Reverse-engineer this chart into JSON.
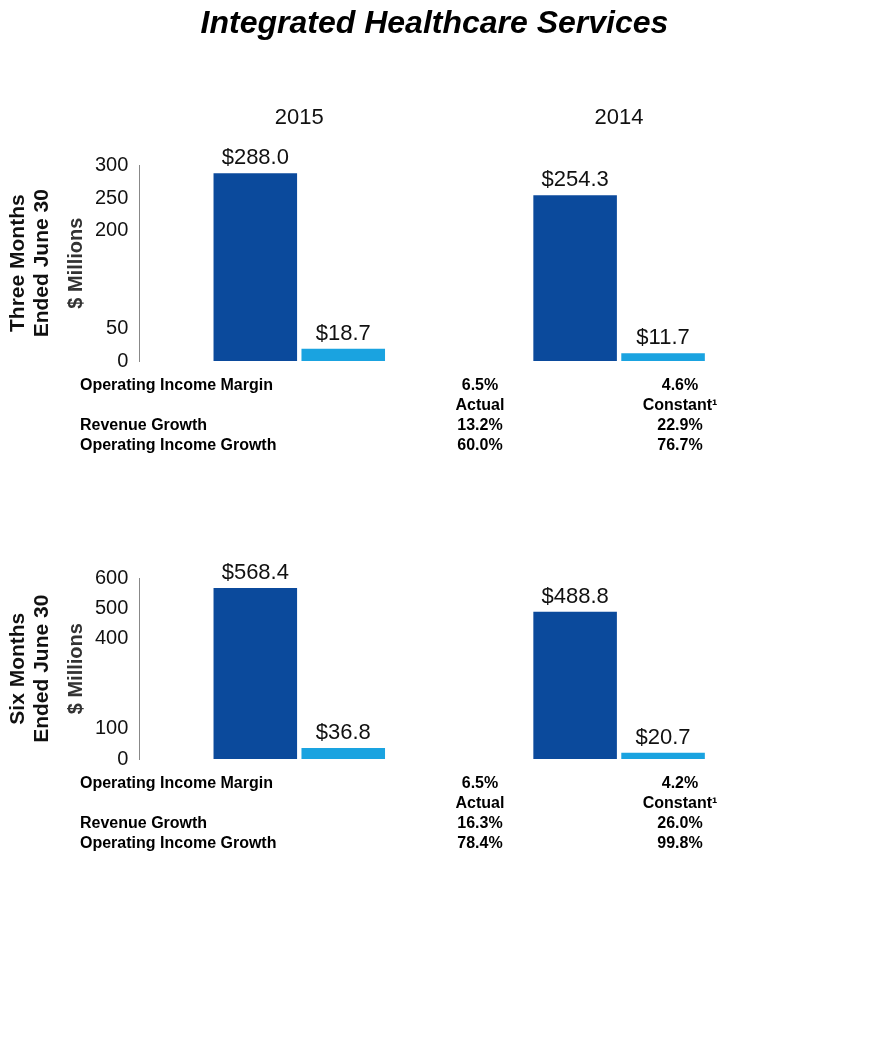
{
  "chart_data": [
    {
      "type": "bar",
      "title": "Integrated Healthcare Services",
      "subtitle": "Three Months Ended June 30",
      "ylabel": "$ Millions",
      "categories": [
        "2015",
        "2014"
      ],
      "series": [
        {
          "color": "#0b4a9c",
          "values": [
            288.0,
            254.3
          ],
          "value_labels": [
            "$288.0",
            "$254.3"
          ]
        },
        {
          "color": "#1aa3e0",
          "values": [
            18.7,
            11.7
          ],
          "value_labels": [
            "$18.7",
            "$11.7"
          ]
        }
      ],
      "ylim": [
        0,
        300
      ],
      "yticks": [
        0,
        50,
        200,
        250,
        300
      ],
      "grid": false,
      "legend": false,
      "annotations": [
        "Operating Income Margin",
        "6.5%",
        "4.6%",
        "Actual",
        "Constant¹",
        "Revenue Growth",
        "13.2%",
        "22.9%",
        "Operating Income Growth",
        "60.0%",
        "76.7%"
      ]
    },
    {
      "type": "bar",
      "subtitle": "Six Months Ended June 30",
      "ylabel": "$ Millions",
      "categories": [
        null,
        null
      ],
      "series": [
        {
          "color": "#0b4a9c",
          "values": [
            568.4,
            488.8
          ],
          "value_labels": [
            "$568.4",
            "$488.8"
          ]
        },
        {
          "color": "#1aa3e0",
          "values": [
            36.8,
            20.7
          ],
          "value_labels": [
            "$36.8",
            "$20.7"
          ]
        }
      ],
      "ylim": [
        0,
        600
      ],
      "yticks": [
        0,
        100,
        400,
        500,
        600
      ],
      "grid": false,
      "legend": false,
      "annotations": [
        "Operating Income Margin",
        "6.5%",
        "4.2%",
        "Actual",
        "Constant¹",
        "Revenue Growth",
        "16.3%",
        "26.0%",
        "Operating Income Growth",
        "78.4%",
        "99.8%"
      ]
    }
  ]
}
